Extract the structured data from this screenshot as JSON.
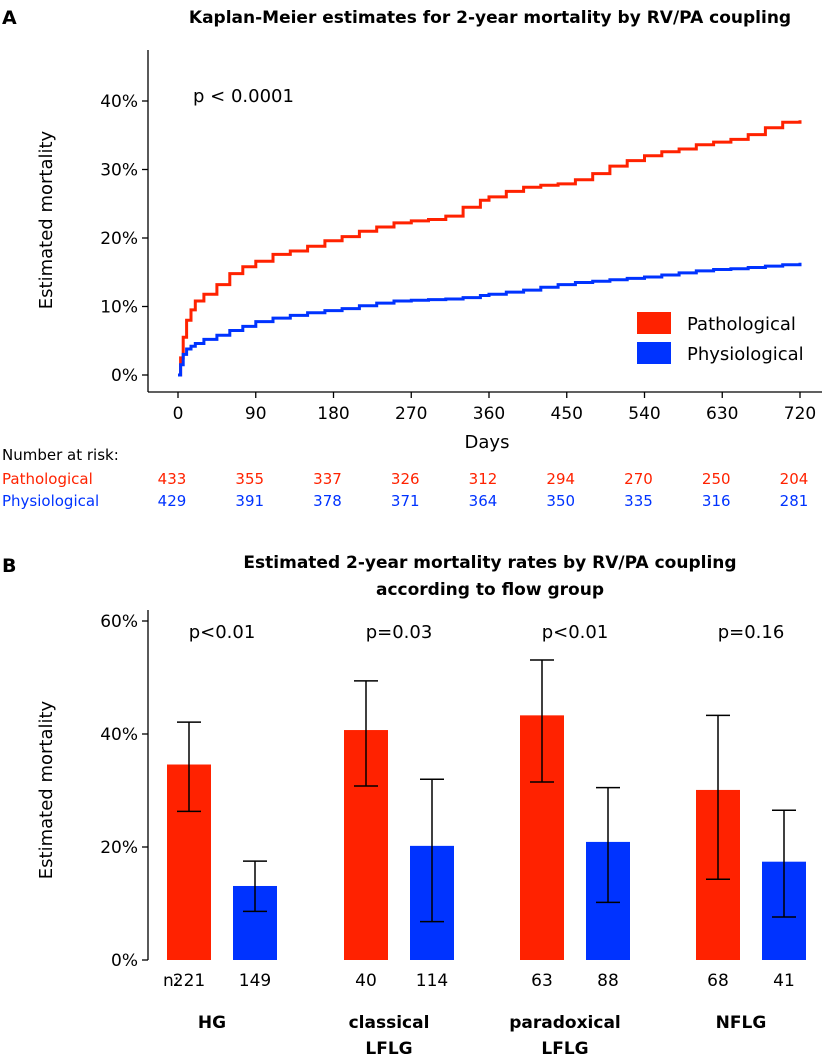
{
  "colors": {
    "pathological": "#ff2200",
    "physiological": "#0033ff"
  },
  "chart_data": [
    {
      "panel": "A",
      "type": "line",
      "title": "Kaplan-Meier estimates for 2-year mortality by RV/PA coupling",
      "xlabel": "Days",
      "ylabel": "Estimated mortality",
      "annotation": "p < 0.0001",
      "xlim": [
        0,
        720
      ],
      "ylim": [
        0,
        40
      ],
      "xticks": [
        0,
        90,
        180,
        270,
        360,
        450,
        540,
        630,
        720
      ],
      "yticks": [
        "0%",
        "10%",
        "20%",
        "30%",
        "40%"
      ],
      "legend": {
        "placement": "bottom-right",
        "entries": [
          "Pathological",
          "Physiological"
        ]
      },
      "series": [
        {
          "name": "Pathological",
          "x": [
            0,
            3,
            6,
            10,
            15,
            20,
            30,
            45,
            60,
            75,
            90,
            110,
            130,
            150,
            170,
            190,
            210,
            230,
            250,
            270,
            290,
            310,
            330,
            350,
            360,
            380,
            400,
            420,
            440,
            460,
            480,
            500,
            520,
            540,
            560,
            580,
            600,
            620,
            640,
            660,
            680,
            700,
            720
          ],
          "y": [
            0,
            2.5,
            5.5,
            8,
            9.5,
            10.8,
            11.8,
            13.2,
            14.8,
            15.8,
            16.6,
            17.6,
            18.1,
            18.8,
            19.6,
            20.2,
            21.0,
            21.6,
            22.2,
            22.5,
            22.7,
            23.2,
            24.5,
            25.5,
            26.0,
            26.8,
            27.4,
            27.7,
            27.9,
            28.5,
            29.4,
            30.5,
            31.3,
            32.0,
            32.6,
            33.0,
            33.6,
            34.0,
            34.4,
            35.1,
            36.1,
            36.9,
            37.2
          ]
        },
        {
          "name": "Physiological",
          "x": [
            0,
            3,
            6,
            10,
            15,
            20,
            30,
            45,
            60,
            75,
            90,
            110,
            130,
            150,
            170,
            190,
            210,
            230,
            250,
            270,
            290,
            310,
            330,
            350,
            360,
            380,
            400,
            420,
            440,
            460,
            480,
            500,
            520,
            540,
            560,
            580,
            600,
            620,
            640,
            660,
            680,
            700,
            720
          ],
          "y": [
            0,
            1.5,
            3.0,
            3.8,
            4.2,
            4.6,
            5.2,
            5.8,
            6.5,
            7.1,
            7.8,
            8.3,
            8.7,
            9.1,
            9.4,
            9.7,
            10.1,
            10.5,
            10.8,
            10.9,
            11.0,
            11.1,
            11.3,
            11.6,
            11.8,
            12.1,
            12.4,
            12.8,
            13.2,
            13.5,
            13.7,
            13.9,
            14.1,
            14.3,
            14.6,
            14.9,
            15.2,
            15.4,
            15.5,
            15.7,
            15.9,
            16.1,
            16.4
          ]
        }
      ],
      "risk_table": {
        "header": "Number at risk:",
        "rows": [
          {
            "label": "Pathological",
            "values": [
              "433",
              "355",
              "337",
              "326",
              "312",
              "294",
              "270",
              "250",
              "204"
            ]
          },
          {
            "label": "Physiological",
            "values": [
              "429",
              "391",
              "378",
              "371",
              "364",
              "350",
              "335",
              "316",
              "281"
            ]
          }
        ]
      }
    },
    {
      "panel": "B",
      "type": "bar",
      "title_lines": [
        "Estimated 2-year mortality rates by RV/PA coupling",
        "according to flow group"
      ],
      "ylabel": "Estimated mortality",
      "ylim": [
        0,
        60
      ],
      "yticks": [
        "0%",
        "20%",
        "40%",
        "60%"
      ],
      "n_label": "n:",
      "groups": [
        {
          "label_lines": [
            "HG"
          ],
          "p": "p<0.01",
          "bars": [
            {
              "series": "Pathological",
              "value": 34.6,
              "ci": [
                26.3,
                42.1
              ],
              "n": "221"
            },
            {
              "series": "Physiological",
              "value": 13.1,
              "ci": [
                8.6,
                17.5
              ],
              "n": "149"
            }
          ]
        },
        {
          "label_lines": [
            "classical",
            "LFLG"
          ],
          "p": "p=0.03",
          "bars": [
            {
              "series": "Pathological",
              "value": 40.7,
              "ci": [
                30.8,
                49.4
              ],
              "n": "40"
            },
            {
              "series": "Physiological",
              "value": 20.2,
              "ci": [
                6.8,
                32.0
              ],
              "n": "114"
            }
          ]
        },
        {
          "label_lines": [
            "paradoxical",
            "LFLG"
          ],
          "p": "p<0.01",
          "bars": [
            {
              "series": "Pathological",
              "value": 43.3,
              "ci": [
                31.5,
                53.1
              ],
              "n": "63"
            },
            {
              "series": "Physiological",
              "value": 20.9,
              "ci": [
                10.2,
                30.5
              ],
              "n": "88"
            }
          ]
        },
        {
          "label_lines": [
            "NFLG"
          ],
          "p": "p=0.16",
          "bars": [
            {
              "series": "Pathological",
              "value": 30.1,
              "ci": [
                14.3,
                43.3
              ],
              "n": "68"
            },
            {
              "series": "Physiological",
              "value": 17.4,
              "ci": [
                7.6,
                26.5
              ],
              "n": "41"
            }
          ]
        }
      ]
    }
  ]
}
